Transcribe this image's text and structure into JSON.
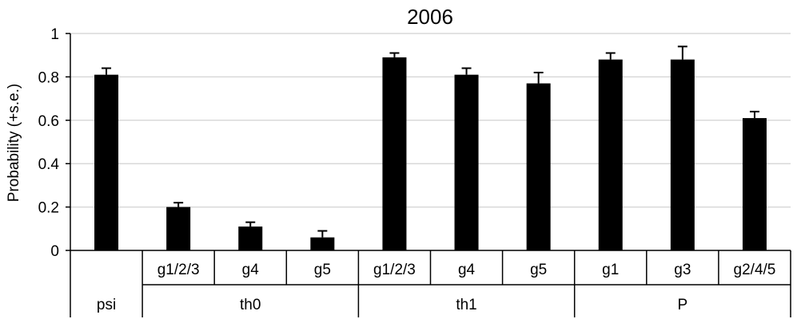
{
  "chart_data": {
    "type": "bar",
    "title": "2006",
    "ylabel": "Probability (+s.e.)",
    "xlabel": "",
    "ylim": [
      0,
      1
    ],
    "yticks": [
      0,
      0.2,
      0.4,
      0.6,
      0.8,
      1
    ],
    "ytick_labels": [
      "0",
      "0.2",
      "0.4",
      "0.6",
      "0.8",
      "1"
    ],
    "grid": "horizontal",
    "legend": "none",
    "bar_color": "#000000",
    "categories": [
      "",
      "g1/2/3",
      "g4",
      "g5",
      "g1/2/3",
      "g4",
      "g5",
      "g1",
      "g3",
      "g2/4/5"
    ],
    "groups": [
      {
        "label": "psi",
        "start": 0,
        "end": 0
      },
      {
        "label": "th0",
        "start": 1,
        "end": 3
      },
      {
        "label": "th1",
        "start": 4,
        "end": 6
      },
      {
        "label": "P",
        "start": 7,
        "end": 9
      }
    ],
    "values": [
      0.81,
      0.2,
      0.11,
      0.06,
      0.89,
      0.81,
      0.77,
      0.88,
      0.88,
      0.61
    ],
    "errors": [
      0.03,
      0.02,
      0.02,
      0.03,
      0.02,
      0.03,
      0.05,
      0.03,
      0.06,
      0.03
    ]
  }
}
